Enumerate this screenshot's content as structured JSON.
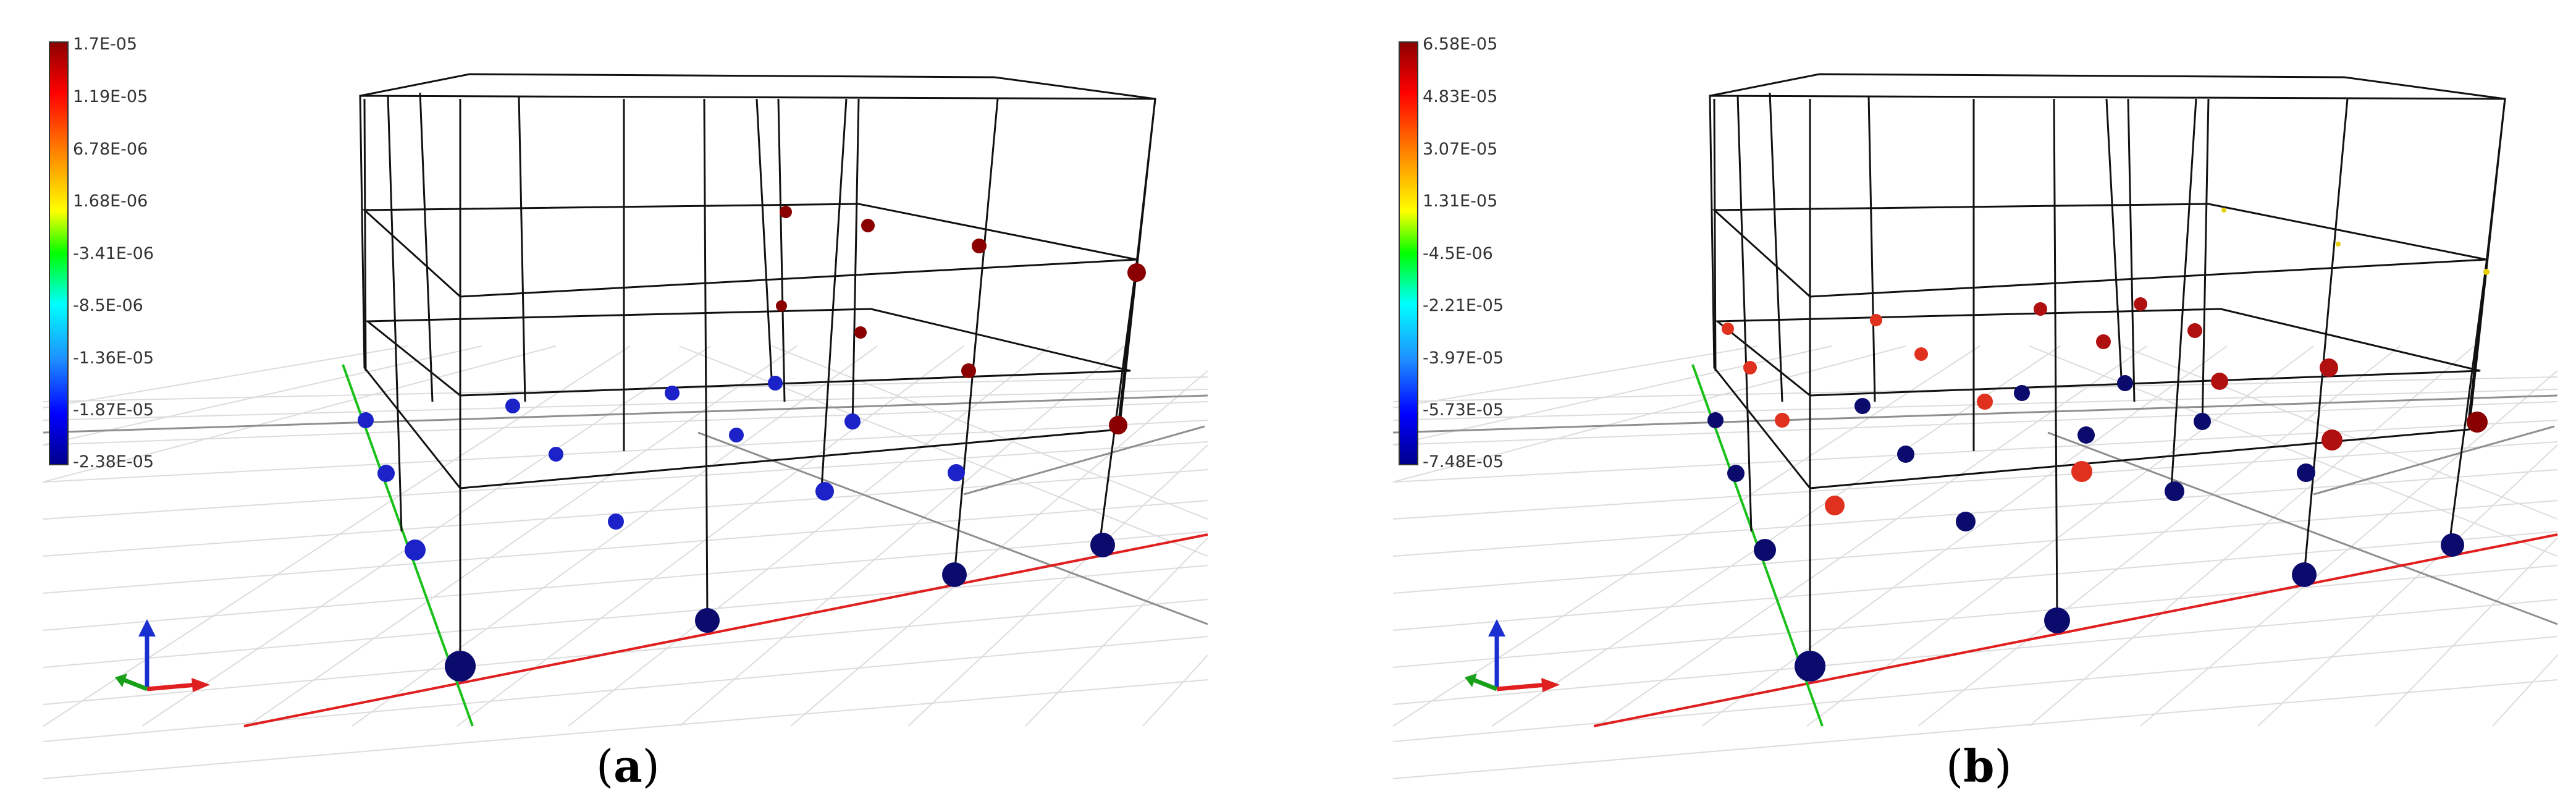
{
  "panels": [
    {
      "id": "a",
      "caption_letter": "a",
      "legend": {
        "ticks": [
          "1.7E-05",
          "1.19E-05",
          "6.78E-06",
          "1.68E-06",
          "-3.41E-06",
          "-8.5E-06",
          "-1.36E-05",
          "-1.87E-05",
          "-2.38E-05"
        ]
      }
    },
    {
      "id": "b",
      "caption_letter": "b",
      "legend": {
        "ticks": [
          "6.58E-05",
          "4.83E-05",
          "3.07E-05",
          "1.31E-05",
          "-4.5E-06",
          "-2.21E-05",
          "-3.97E-05",
          "-5.73E-05",
          "-7.48E-05"
        ]
      }
    }
  ],
  "colors": {
    "background": "#ffffff",
    "grid_line": "#dadada",
    "frame_line": "#111111",
    "axis_x": "#e02020",
    "axis_y": "#19c019",
    "axis_z": "#1a2fd0",
    "node_dark_blue": "#0b0b6e",
    "node_blue": "#1a22c8",
    "node_dark_red": "#8a0000",
    "node_red": "#e0301e",
    "node_yellow": "#e8d000",
    "colormap": [
      "#8b0000",
      "#ff0000",
      "#ff8c00",
      "#ffff00",
      "#00ff00",
      "#00ffff",
      "#1e90ff",
      "#0000ff",
      "#00008b"
    ]
  }
}
